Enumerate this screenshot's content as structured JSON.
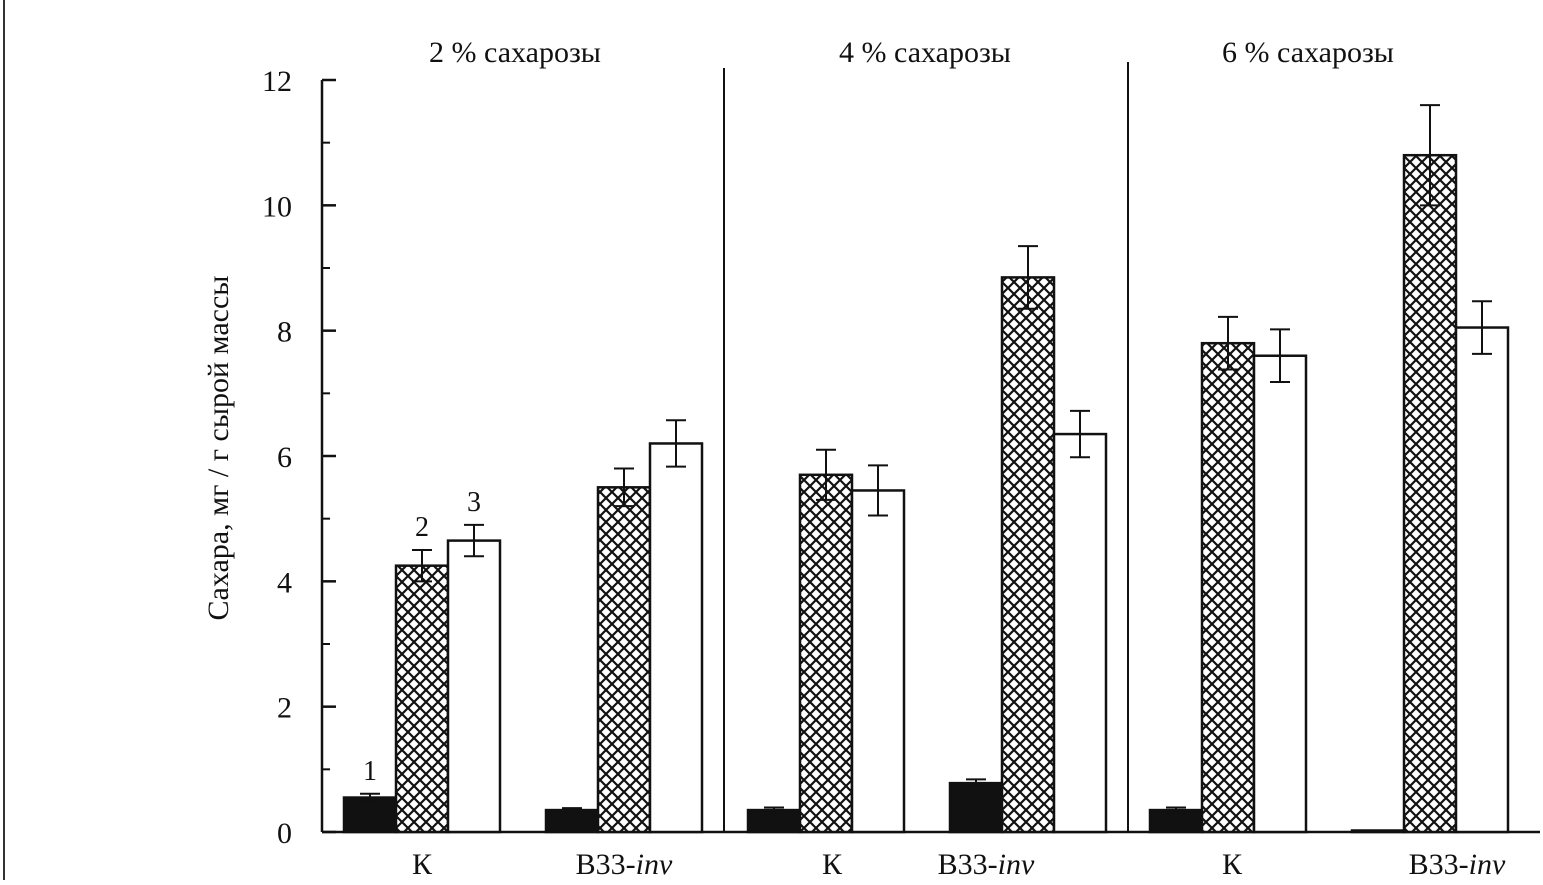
{
  "chart_data": {
    "type": "bar",
    "ylabel": "Сахара, мг / г сырой массы",
    "ylim": [
      0,
      12
    ],
    "yticks": [
      "0",
      "2",
      "4",
      "6",
      "8",
      "10",
      "12"
    ],
    "series_labels": [
      "1",
      "2",
      "3"
    ],
    "colors": {
      "series_1": "#111111",
      "series_2_hatch": "#111111",
      "series_3": "#ffffff",
      "axis": "#111111"
    },
    "panels": [
      {
        "title": "2 % сахарозы",
        "groups": [
          {
            "label": "К",
            "label_italic": "",
            "values": [
              0.55,
              4.25,
              4.65
            ],
            "errors": [
              0.06,
              0.25,
              0.25
            ]
          },
          {
            "label": "В33-",
            "label_italic": "inv",
            "values": [
              0.35,
              5.5,
              6.2
            ],
            "errors": [
              0.03,
              0.3,
              0.37
            ]
          }
        ]
      },
      {
        "title": "4 % сахарозы",
        "groups": [
          {
            "label": "К",
            "label_italic": "",
            "values": [
              0.35,
              5.7,
              5.45
            ],
            "errors": [
              0.04,
              0.4,
              0.4
            ]
          },
          {
            "label": "В33-",
            "label_italic": "inv",
            "values": [
              0.78,
              8.85,
              6.35
            ],
            "errors": [
              0.06,
              0.5,
              0.37
            ]
          }
        ]
      },
      {
        "title": "6 % сахарозы",
        "groups": [
          {
            "label": "К",
            "label_italic": "",
            "values": [
              0.35,
              7.8,
              7.6
            ],
            "errors": [
              0.04,
              0.42,
              0.42
            ]
          },
          {
            "label": "В33-",
            "label_italic": "inv",
            "values": [
              0.02,
              10.8,
              8.05
            ],
            "errors": [
              0.0,
              0.8,
              0.42
            ]
          }
        ]
      }
    ]
  }
}
